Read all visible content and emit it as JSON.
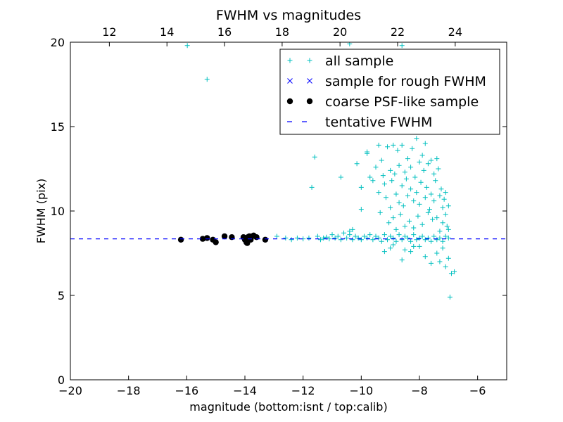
{
  "chart_data": {
    "type": "scatter",
    "title": "FWHM vs magnitudes",
    "xlabel": "magnitude (bottom:isnt / top:calib)",
    "ylabel": "FWHM (pix)",
    "xlim": [
      -20,
      -5
    ],
    "ylim": [
      0,
      20
    ],
    "x_ticks": [
      -20,
      -18,
      -16,
      -14,
      -12,
      -10,
      -8,
      -6
    ],
    "x_tick_labels": [
      "−20",
      "−18",
      "−16",
      "−14",
      "−12",
      "−10",
      "−8",
      "−6"
    ],
    "y_ticks": [
      0,
      5,
      10,
      15,
      20
    ],
    "y_tick_labels": [
      "0",
      "5",
      "10",
      "15",
      "20"
    ],
    "top_axis": {
      "label_positions_bottom_units": [
        -18.66,
        -16.68,
        -14.7,
        -12.72,
        -10.73,
        -8.75,
        -6.77
      ],
      "tick_labels": [
        "12",
        "14",
        "16",
        "18",
        "20",
        "22",
        "24"
      ]
    },
    "grid": false,
    "legend_position": "top-right",
    "series": [
      {
        "name": "all sample",
        "marker": "plus",
        "color": "#00bfbf",
        "points": [
          [
            -15.98,
            19.8
          ],
          [
            -15.3,
            17.8
          ],
          [
            -10.4,
            19.9
          ],
          [
            -8.6,
            19.8
          ],
          [
            -12.9,
            8.5
          ],
          [
            -12.6,
            8.4
          ],
          [
            -12.4,
            8.3
          ],
          [
            -12.2,
            8.4
          ],
          [
            -12.0,
            8.35
          ],
          [
            -11.8,
            8.4
          ],
          [
            -11.5,
            8.5
          ],
          [
            -11.4,
            8.3
          ],
          [
            -11.3,
            8.4
          ],
          [
            -11.2,
            8.45
          ],
          [
            -11.1,
            8.35
          ],
          [
            -11.0,
            8.6
          ],
          [
            -10.9,
            8.4
          ],
          [
            -10.8,
            8.5
          ],
          [
            -10.7,
            8.3
          ],
          [
            -10.6,
            8.7
          ],
          [
            -10.5,
            8.4
          ],
          [
            -10.4,
            8.6
          ],
          [
            -10.3,
            8.3
          ],
          [
            -10.2,
            8.5
          ],
          [
            -10.1,
            8.4
          ],
          [
            -10.0,
            8.3
          ],
          [
            -9.9,
            8.5
          ],
          [
            -9.8,
            8.4
          ],
          [
            -9.7,
            8.6
          ],
          [
            -9.6,
            8.3
          ],
          [
            -9.5,
            8.5
          ],
          [
            -9.4,
            8.4
          ],
          [
            -9.3,
            8.2
          ],
          [
            -9.2,
            8.6
          ],
          [
            -9.1,
            8.3
          ],
          [
            -9.0,
            8.5
          ],
          [
            -8.9,
            8.4
          ],
          [
            -8.8,
            8.2
          ],
          [
            -8.7,
            8.6
          ],
          [
            -8.6,
            8.3
          ],
          [
            -8.5,
            8.5
          ],
          [
            -8.4,
            8.4
          ],
          [
            -8.3,
            8.2
          ],
          [
            -8.2,
            8.6
          ],
          [
            -8.1,
            8.3
          ],
          [
            -8.0,
            8.4
          ],
          [
            -7.9,
            8.5
          ],
          [
            -7.8,
            8.3
          ],
          [
            -7.7,
            8.4
          ],
          [
            -7.6,
            8.2
          ],
          [
            -7.5,
            8.5
          ],
          [
            -7.4,
            8.3
          ],
          [
            -7.3,
            8.4
          ],
          [
            -7.2,
            8.2
          ],
          [
            -7.1,
            8.5
          ],
          [
            -7.0,
            8.4
          ],
          [
            -11.7,
            11.4
          ],
          [
            -11.6,
            13.2
          ],
          [
            -10.7,
            12.0
          ],
          [
            -10.4,
            8.8
          ],
          [
            -10.3,
            8.9
          ],
          [
            -10.15,
            12.8
          ],
          [
            -10.0,
            10.1
          ],
          [
            -10.0,
            11.4
          ],
          [
            -9.8,
            13.4
          ],
          [
            -9.8,
            13.5
          ],
          [
            -9.7,
            12.0
          ],
          [
            -9.6,
            11.8
          ],
          [
            -9.5,
            12.6
          ],
          [
            -9.4,
            13.9
          ],
          [
            -9.4,
            11.1
          ],
          [
            -9.35,
            9.9
          ],
          [
            -9.3,
            13.0
          ],
          [
            -9.25,
            12.1
          ],
          [
            -9.2,
            11.6
          ],
          [
            -9.15,
            10.8
          ],
          [
            -9.1,
            13.8
          ],
          [
            -9.05,
            9.3
          ],
          [
            -9.0,
            12.4
          ],
          [
            -9.0,
            10.2
          ],
          [
            -8.95,
            11.8
          ],
          [
            -8.9,
            13.9
          ],
          [
            -8.9,
            9.6
          ],
          [
            -8.85,
            12.2
          ],
          [
            -8.8,
            11.0
          ],
          [
            -8.8,
            8.9
          ],
          [
            -8.75,
            13.6
          ],
          [
            -8.7,
            10.5
          ],
          [
            -8.7,
            12.7
          ],
          [
            -8.65,
            9.8
          ],
          [
            -8.6,
            11.5
          ],
          [
            -8.6,
            13.9
          ],
          [
            -8.55,
            10.3
          ],
          [
            -8.5,
            12.3
          ],
          [
            -8.5,
            9.1
          ],
          [
            -8.45,
            11.9
          ],
          [
            -8.4,
            13.1
          ],
          [
            -8.4,
            10.9
          ],
          [
            -8.35,
            9.4
          ],
          [
            -8.3,
            12.6
          ],
          [
            -8.3,
            11.3
          ],
          [
            -8.25,
            13.7
          ],
          [
            -8.2,
            10.6
          ],
          [
            -8.2,
            9.0
          ],
          [
            -8.15,
            12.0
          ],
          [
            -8.1,
            11.1
          ],
          [
            -8.1,
            14.3
          ],
          [
            -8.05,
            9.7
          ],
          [
            -8.0,
            12.9
          ],
          [
            -8.0,
            10.4
          ],
          [
            -7.95,
            11.7
          ],
          [
            -7.9,
            13.3
          ],
          [
            -7.9,
            9.2
          ],
          [
            -7.85,
            12.4
          ],
          [
            -7.8,
            10.8
          ],
          [
            -7.8,
            14.0
          ],
          [
            -7.75,
            11.4
          ],
          [
            -7.7,
            9.9
          ],
          [
            -7.7,
            12.8
          ],
          [
            -7.65,
            10.1
          ],
          [
            -7.6,
            13.0
          ],
          [
            -7.6,
            11.0
          ],
          [
            -7.55,
            9.5
          ],
          [
            -7.5,
            12.2
          ],
          [
            -7.5,
            10.6
          ],
          [
            -7.45,
            11.8
          ],
          [
            -7.4,
            13.1
          ],
          [
            -7.4,
            9.6
          ],
          [
            -7.35,
            12.5
          ],
          [
            -7.3,
            10.9
          ],
          [
            -7.3,
            8.8
          ],
          [
            -7.25,
            11.3
          ],
          [
            -7.2,
            10.2
          ],
          [
            -7.2,
            9.3
          ],
          [
            -7.15,
            10.7
          ],
          [
            -7.1,
            9.8
          ],
          [
            -7.1,
            11.1
          ],
          [
            -7.05,
            9.1
          ],
          [
            -7.0,
            10.3
          ],
          [
            -7.0,
            8.9
          ],
          [
            -8.6,
            7.1
          ],
          [
            -8.3,
            7.6
          ],
          [
            -8.0,
            7.9
          ],
          [
            -7.8,
            7.3
          ],
          [
            -7.6,
            6.9
          ],
          [
            -7.4,
            7.5
          ],
          [
            -7.3,
            7.0
          ],
          [
            -7.2,
            7.8
          ],
          [
            -7.1,
            6.7
          ],
          [
            -7.0,
            7.2
          ],
          [
            -6.9,
            6.3
          ],
          [
            -6.8,
            6.4
          ],
          [
            -6.95,
            4.9
          ],
          [
            -9.2,
            7.6
          ],
          [
            -9.0,
            7.8
          ],
          [
            -8.9,
            8.0
          ],
          [
            -8.5,
            7.7
          ],
          [
            -8.2,
            7.9
          ]
        ]
      },
      {
        "name": "sample for rough FWHM",
        "marker": "x",
        "color": "#0000ff",
        "points": [
          [
            -16.2,
            8.3
          ],
          [
            -15.45,
            8.35
          ],
          [
            -15.3,
            8.4
          ],
          [
            -15.1,
            8.3
          ],
          [
            -15.0,
            8.15
          ],
          [
            -14.7,
            8.5
          ],
          [
            -14.45,
            8.45
          ],
          [
            -14.0,
            8.3
          ],
          [
            -13.95,
            8.15
          ],
          [
            -13.9,
            8.45
          ],
          [
            -13.85,
            8.5
          ],
          [
            -13.8,
            8.3
          ],
          [
            -13.75,
            8.5
          ],
          [
            -13.6,
            8.45
          ],
          [
            -13.3,
            8.3
          ]
        ]
      },
      {
        "name": "coarse PSF-like sample",
        "marker": "dot",
        "color": "#000000",
        "points": [
          [
            -16.2,
            8.3
          ],
          [
            -15.45,
            8.35
          ],
          [
            -15.3,
            8.4
          ],
          [
            -15.1,
            8.3
          ],
          [
            -15.0,
            8.15
          ],
          [
            -14.7,
            8.5
          ],
          [
            -14.45,
            8.45
          ],
          [
            -14.0,
            8.3
          ],
          [
            -13.95,
            8.15
          ],
          [
            -13.9,
            8.45
          ],
          [
            -13.85,
            8.5
          ],
          [
            -13.8,
            8.3
          ],
          [
            -13.75,
            8.5
          ],
          [
            -13.6,
            8.45
          ],
          [
            -13.3,
            8.3
          ],
          [
            -14.05,
            8.45
          ],
          [
            -13.92,
            8.1
          ],
          [
            -13.7,
            8.55
          ]
        ]
      },
      {
        "name": "tentative FWHM",
        "marker": "dashed-line",
        "color": "#0000ff",
        "y": 8.35
      }
    ]
  }
}
